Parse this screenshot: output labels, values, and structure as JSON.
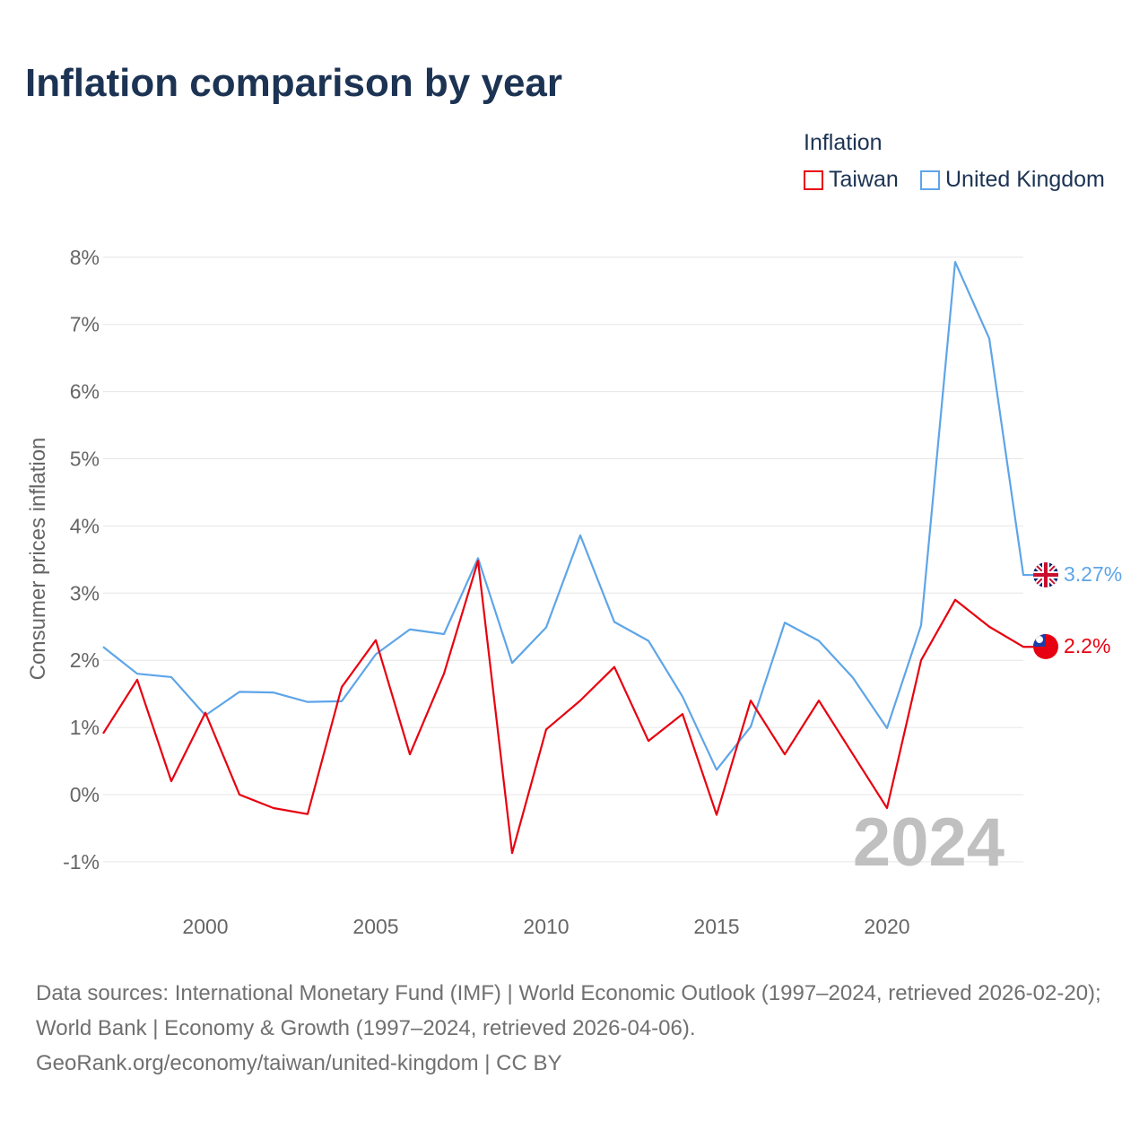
{
  "title": "Inflation comparison by year",
  "legend": {
    "title": "Inflation",
    "items": [
      {
        "label": "Taiwan",
        "color": "#e8000f"
      },
      {
        "label": "United Kingdom",
        "color": "#5ea5e8"
      }
    ]
  },
  "watermark_year": "2024",
  "source": {
    "line1": "Data sources: International Monetary Fund (IMF) | World Economic Outlook (1997–2024, retrieved 2026-02-20); World Bank | Economy & Growth (1997–2024, retrieved 2026-04-06).",
    "line2": "GeoRank.org/economy/taiwan/united-kingdom | CC BY"
  },
  "chart_data": {
    "type": "line",
    "title": "Inflation comparison by year",
    "xlabel": "",
    "ylabel": "Consumer prices inflation",
    "ylim": [
      -1,
      8
    ],
    "xlim": [
      1997,
      2024
    ],
    "yticks": [
      "-1%",
      "0%",
      "1%",
      "2%",
      "3%",
      "4%",
      "5%",
      "6%",
      "7%",
      "8%"
    ],
    "xticks": [
      "2000",
      "2005",
      "2010",
      "2015",
      "2020"
    ],
    "grid": true,
    "legend_position": "top-right",
    "x": [
      1997,
      1998,
      1999,
      2000,
      2001,
      2002,
      2003,
      2004,
      2005,
      2006,
      2007,
      2008,
      2009,
      2010,
      2011,
      2012,
      2013,
      2014,
      2015,
      2016,
      2017,
      2018,
      2019,
      2020,
      2021,
      2022,
      2023,
      2024
    ],
    "series": [
      {
        "name": "Taiwan",
        "color": "#e8000f",
        "end_label": "2.2%",
        "values": [
          0.91,
          1.71,
          0.2,
          1.22,
          0.0,
          -0.2,
          -0.29,
          1.6,
          2.3,
          0.6,
          1.8,
          3.48,
          -0.87,
          0.97,
          1.4,
          1.9,
          0.8,
          1.2,
          -0.3,
          1.4,
          0.6,
          1.4,
          0.6,
          -0.2,
          2.0,
          2.9,
          2.5,
          2.2
        ]
      },
      {
        "name": "United Kingdom",
        "color": "#5ea5e8",
        "end_label": "3.27%",
        "values": [
          2.2,
          1.8,
          1.75,
          1.18,
          1.53,
          1.52,
          1.38,
          1.39,
          2.09,
          2.46,
          2.39,
          3.52,
          1.96,
          2.49,
          3.86,
          2.57,
          2.29,
          1.46,
          0.37,
          1.01,
          2.56,
          2.29,
          1.74,
          0.99,
          2.52,
          7.93,
          6.79,
          3.27
        ]
      }
    ]
  }
}
